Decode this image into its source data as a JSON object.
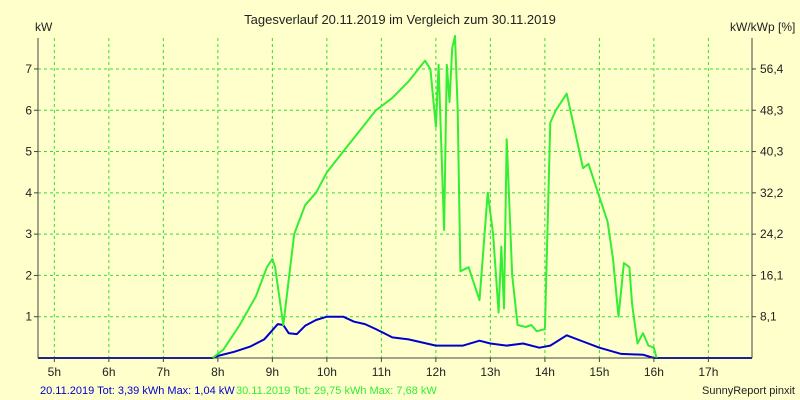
{
  "chart_data": {
    "type": "line",
    "title": "Tagesverlauf 20.11.2019 im Vergleich zum 30.11.2019",
    "ylabel_left": "kW",
    "ylabel_right": "kW/kWp [%]",
    "xlim": [
      4.7,
      17.8
    ],
    "ylim": [
      0,
      7.75
    ],
    "x_ticks": [
      5,
      6,
      7,
      8,
      9,
      10,
      11,
      12,
      13,
      14,
      15,
      16,
      17
    ],
    "x_tick_labels": [
      "5h",
      "6h",
      "7h",
      "8h",
      "9h",
      "10h",
      "11h",
      "12h",
      "13h",
      "14h",
      "15h",
      "16h",
      "17h"
    ],
    "y_ticks_left": [
      1,
      2,
      3,
      4,
      5,
      6,
      7
    ],
    "y_tick_labels_left": [
      "1",
      "2",
      "3",
      "4",
      "5",
      "6",
      "7"
    ],
    "y_ticks_right_kw": [
      1,
      2,
      3,
      4,
      5,
      6,
      7
    ],
    "y_tick_labels_right": [
      "8,1",
      "16,1",
      "24,2",
      "32,2",
      "40,3",
      "48,3",
      "56,4"
    ],
    "grid": true,
    "colors": {
      "background": "#ffffcc",
      "grid": "#33dd33",
      "axis": "#444444",
      "series_blue": "#0000cc",
      "series_green": "#33ee33"
    },
    "series": [
      {
        "color": "#0000cc",
        "x": [
          4.7,
          7.9,
          8.0,
          8.3,
          8.6,
          8.85,
          9.1,
          9.2,
          9.3,
          9.45,
          9.6,
          9.8,
          10.0,
          10.3,
          10.5,
          10.7,
          10.9,
          11.2,
          11.5,
          12.0,
          12.5,
          12.8,
          13.0,
          13.3,
          13.6,
          13.9,
          14.1,
          14.4,
          14.7,
          15.0,
          15.4,
          15.8,
          16.0,
          17.8
        ],
        "y": [
          0.0,
          0.0,
          0.05,
          0.15,
          0.28,
          0.45,
          0.82,
          0.8,
          0.6,
          0.58,
          0.78,
          0.92,
          1.0,
          1.0,
          0.88,
          0.82,
          0.7,
          0.5,
          0.45,
          0.3,
          0.3,
          0.42,
          0.35,
          0.3,
          0.35,
          0.25,
          0.3,
          0.55,
          0.4,
          0.25,
          0.1,
          0.08,
          0.0,
          0.0
        ]
      },
      {
        "color": "#33ee33",
        "x": [
          7.9,
          8.1,
          8.4,
          8.7,
          8.9,
          9.0,
          9.05,
          9.2,
          9.4,
          9.6,
          9.8,
          10.0,
          10.3,
          10.6,
          10.9,
          11.2,
          11.5,
          11.8,
          11.9,
          12.0,
          12.05,
          12.15,
          12.2,
          12.25,
          12.3,
          12.35,
          12.4,
          12.45,
          12.6,
          12.8,
          12.95,
          13.05,
          13.15,
          13.2,
          13.25,
          13.3,
          13.4,
          13.5,
          13.65,
          13.75,
          13.85,
          14.0,
          14.1,
          14.2,
          14.4,
          14.55,
          14.7,
          14.8,
          15.0,
          15.15,
          15.25,
          15.35,
          15.45,
          15.55,
          15.6,
          15.7,
          15.8,
          15.9,
          16.0,
          16.05
        ],
        "y": [
          0.0,
          0.2,
          0.8,
          1.5,
          2.2,
          2.4,
          2.2,
          0.8,
          3.0,
          3.7,
          4.0,
          4.5,
          5.0,
          5.5,
          6.0,
          6.3,
          6.7,
          7.2,
          7.0,
          5.6,
          7.1,
          3.1,
          7.1,
          6.2,
          7.5,
          7.8,
          6.0,
          2.1,
          2.2,
          1.4,
          4.0,
          3.0,
          1.1,
          2.7,
          1.2,
          5.3,
          2.0,
          0.8,
          0.75,
          0.8,
          0.65,
          0.7,
          5.7,
          6.0,
          6.4,
          5.5,
          4.6,
          4.7,
          3.9,
          3.3,
          2.4,
          1.0,
          2.3,
          2.2,
          1.3,
          0.35,
          0.6,
          0.3,
          0.25,
          0.0
        ]
      }
    ]
  },
  "footer": {
    "left_blue": "20.11.2019 Tot: 3,39 kWh Max: 1,04 kW",
    "left_green": "30.11.2019 Tot: 29,75 kWh Max: 7,68 kW",
    "right": "SunnyReport pinxit"
  }
}
